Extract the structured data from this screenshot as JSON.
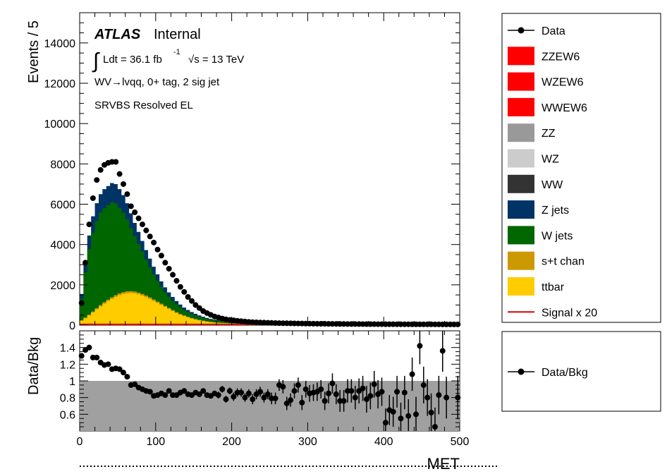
{
  "chart_data": [
    {
      "type": "stacked-histogram",
      "panel": "main",
      "ylabel": "Events / 5",
      "xlim": [
        0,
        500
      ],
      "ylim": [
        0,
        15500
      ],
      "y_ticks": [
        0,
        2000,
        4000,
        6000,
        8000,
        10000,
        12000,
        14000
      ],
      "y_tick_labels": [
        "0",
        "2000",
        "4000",
        "6000",
        "8000",
        "10000",
        "12000",
        "14000"
      ],
      "annotations": {
        "atlas": "ATLAS",
        "internal": "Internal",
        "integral": "∫",
        "lumi": "Ldt = 36.1 fb",
        "lumi_exp": "-1",
        "energy": "√s = 13 TeV",
        "channel": "WV→lvqq, 0+ tag, 2 sig jet",
        "region": "SRVBS Resolved EL"
      },
      "bin_width": 5,
      "stack_order_bottom_to_top": [
        "ttbar",
        "s+t chan",
        "W jets",
        "Z jets",
        "WW",
        "WZ",
        "ZZ",
        "WWEW6",
        "WZEW6",
        "ZZEW6"
      ],
      "total_bkg_x": [
        0,
        5,
        10,
        15,
        20,
        25,
        30,
        35,
        40,
        45,
        50,
        55,
        60,
        70,
        80,
        90,
        100,
        110,
        120,
        130,
        140,
        150,
        160,
        170,
        180,
        190,
        200,
        225,
        250,
        300,
        350,
        400,
        450,
        500
      ],
      "total_bkg_y": [
        800,
        2300,
        3900,
        5000,
        5800,
        6300,
        6700,
        6800,
        7000,
        7100,
        6900,
        6600,
        6300,
        5300,
        4400,
        3500,
        2700,
        2000,
        1500,
        1100,
        800,
        600,
        450,
        330,
        260,
        210,
        170,
        120,
        90,
        70,
        60,
        50,
        45,
        40
      ],
      "components": [
        {
          "name": "ttbar",
          "x": [
            0,
            10,
            20,
            30,
            40,
            50,
            60,
            70,
            80,
            90,
            100,
            110,
            120,
            130,
            140,
            150,
            160,
            170,
            180,
            200,
            225,
            250,
            300,
            350,
            400,
            450,
            500
          ],
          "y": [
            150,
            400,
            700,
            1000,
            1250,
            1450,
            1580,
            1600,
            1500,
            1350,
            1150,
            950,
            750,
            550,
            420,
            300,
            220,
            160,
            120,
            80,
            55,
            40,
            30,
            25,
            20,
            18,
            15
          ]
        },
        {
          "name": "s+t chan",
          "x": [
            0,
            10,
            20,
            30,
            40,
            50,
            60,
            70,
            80,
            90,
            100,
            110,
            120,
            130,
            140,
            150,
            160,
            170,
            180,
            200,
            225,
            250,
            300,
            350,
            400,
            450,
            500
          ],
          "y": [
            180,
            440,
            760,
            1070,
            1330,
            1540,
            1670,
            1690,
            1590,
            1430,
            1220,
            1010,
            800,
            590,
            450,
            320,
            240,
            170,
            130,
            90,
            60,
            45,
            34,
            28,
            23,
            20,
            17
          ]
        },
        {
          "name": "W jets",
          "x": [
            0,
            5,
            10,
            15,
            20,
            25,
            30,
            35,
            40,
            45,
            50,
            55,
            60,
            70,
            80,
            90,
            100,
            110,
            120,
            130,
            140,
            150,
            160,
            170,
            180,
            190,
            200,
            225,
            250,
            300,
            350,
            400,
            450,
            500
          ],
          "y": [
            650,
            1950,
            3300,
            4250,
            4900,
            5400,
            5750,
            5850,
            6050,
            6150,
            5950,
            5700,
            5450,
            4600,
            3850,
            3050,
            2350,
            1750,
            1300,
            950,
            700,
            520,
            390,
            290,
            225,
            180,
            150,
            105,
            80,
            62,
            53,
            45,
            40,
            35
          ]
        }
      ],
      "signal_line_y": 40,
      "data_x": [
        2.5,
        7.5,
        12.5,
        17.5,
        22.5,
        27.5,
        32.5,
        37.5,
        42.5,
        47.5,
        52.5,
        57.5,
        62.5,
        67.5,
        72.5,
        77.5,
        82.5,
        87.5,
        92.5,
        97.5,
        102.5,
        107.5,
        112.5,
        117.5,
        122.5,
        127.5,
        132.5,
        137.5,
        142.5,
        147.5,
        152.5,
        157.5,
        162.5,
        167.5,
        172.5,
        177.5,
        182.5,
        187.5,
        192.5,
        197.5,
        202.5,
        207.5,
        212.5,
        217.5,
        222.5,
        227.5,
        232.5,
        237.5,
        242.5,
        247.5,
        252.5,
        257.5,
        262.5,
        267.5,
        272.5,
        277.5,
        282.5,
        287.5,
        292.5,
        297.5,
        302.5,
        307.5,
        312.5,
        317.5,
        322.5,
        327.5,
        332.5,
        337.5,
        342.5,
        347.5,
        352.5,
        357.5,
        362.5,
        367.5,
        372.5,
        377.5,
        382.5,
        387.5,
        392.5,
        397.5,
        402.5,
        407.5,
        412.5,
        417.5,
        422.5,
        427.5,
        432.5,
        437.5,
        442.5,
        447.5,
        452.5,
        457.5,
        462.5,
        467.5,
        472.5,
        477.5,
        482.5,
        487.5,
        492.5,
        497.5
      ],
      "data_y": [
        1100,
        3100,
        5000,
        6300,
        7200,
        7700,
        7950,
        8050,
        8100,
        8100,
        7500,
        7000,
        6500,
        5900,
        5600,
        5300,
        5000,
        4700,
        4400,
        4100,
        3750,
        3450,
        3100,
        2800,
        2500,
        2200,
        1900,
        1650,
        1400,
        1200,
        1000,
        850,
        700,
        600,
        510,
        430,
        380,
        330,
        290,
        260,
        240,
        215,
        195,
        178,
        162,
        150,
        140,
        132,
        125,
        118,
        112,
        107,
        102,
        98,
        94,
        90,
        87,
        84,
        81,
        79,
        76,
        74,
        72,
        70,
        68,
        66,
        64,
        62,
        61,
        60,
        58,
        57,
        56,
        55,
        54,
        53,
        52,
        51,
        50,
        49,
        48,
        48,
        47,
        46,
        46,
        45,
        45,
        44,
        44,
        43,
        43,
        42,
        42,
        41,
        41,
        40,
        40,
        40,
        39,
        39
      ]
    },
    {
      "type": "ratio",
      "panel": "ratio",
      "xlabel": "MET",
      "ylabel": "Data/Bkg",
      "xlim": [
        0,
        500
      ],
      "ylim": [
        0.4,
        1.6
      ],
      "x_ticks": [
        0,
        100,
        200,
        300,
        400,
        500
      ],
      "x_tick_labels": [
        "0",
        "100",
        "200",
        "300",
        "400",
        "500"
      ],
      "y_ticks": [
        0.6,
        0.8,
        1,
        1.2,
        1.4
      ],
      "y_tick_labels": [
        "0.6",
        "0.8",
        "1",
        "1.2",
        "1.4"
      ],
      "band_range": [
        0.4,
        1.0
      ],
      "ratio_x": [
        2.5,
        7.5,
        12.5,
        17.5,
        22.5,
        27.5,
        32.5,
        37.5,
        42.5,
        47.5,
        52.5,
        57.5,
        62.5,
        67.5,
        72.5,
        77.5,
        82.5,
        87.5,
        92.5,
        97.5,
        102.5,
        107.5,
        112.5,
        117.5,
        122.5,
        127.5,
        132.5,
        137.5,
        142.5,
        147.5,
        152.5,
        157.5,
        162.5,
        167.5,
        172.5,
        177.5,
        182.5,
        187.5,
        192.5,
        197.5,
        202.5,
        207.5,
        212.5,
        217.5,
        222.5,
        227.5,
        232.5,
        237.5,
        242.5,
        247.5,
        252.5,
        257.5,
        262.5,
        267.5,
        272.5,
        277.5,
        282.5,
        287.5,
        292.5,
        297.5,
        302.5,
        307.5,
        312.5,
        317.5,
        322.5,
        327.5,
        332.5,
        337.5,
        342.5,
        347.5,
        352.5,
        357.5,
        362.5,
        367.5,
        372.5,
        377.5,
        382.5,
        387.5,
        392.5,
        397.5,
        402.5,
        407.5,
        412.5,
        417.5,
        422.5,
        427.5,
        432.5,
        437.5,
        442.5,
        447.5,
        452.5,
        457.5,
        462.5,
        467.5,
        472.5,
        477.5,
        482.5,
        487.5,
        492.5,
        497.5
      ],
      "ratio_y": [
        1.3,
        1.37,
        1.4,
        1.28,
        1.28,
        1.22,
        1.19,
        1.2,
        1.14,
        1.15,
        1.14,
        1.1,
        1.05,
        0.95,
        0.96,
        0.92,
        0.9,
        0.88,
        0.87,
        0.82,
        0.83,
        0.85,
        0.83,
        0.88,
        0.83,
        0.83,
        0.86,
        0.88,
        0.84,
        0.83,
        0.86,
        0.84,
        0.88,
        0.83,
        0.82,
        0.85,
        0.83,
        0.9,
        0.78,
        0.88,
        0.81,
        0.86,
        0.86,
        0.8,
        0.85,
        0.78,
        0.84,
        0.87,
        0.8,
        0.84,
        0.79,
        0.79,
        0.95,
        0.93,
        0.73,
        0.77,
        0.88,
        0.95,
        0.74,
        0.9,
        0.85,
        0.86,
        0.87,
        0.9,
        0.76,
        0.85,
        0.97,
        0.84,
        0.76,
        0.76,
        0.88,
        0.88,
        0.8,
        0.88,
        0.91,
        0.78,
        0.82,
        0.96,
        0.84,
        0.87,
        0.5,
        0.65,
        0.63,
        0.87,
        0.55,
        0.86,
        0.58,
        1.08,
        0.6,
        1.42,
        0.95,
        0.8,
        0.62,
        0.45,
        0.83,
        1.36,
        0.8,
        null,
        null,
        0.8
      ],
      "ratio_err": [
        0.03,
        0.02,
        0.02,
        0.02,
        0.02,
        0.02,
        0.02,
        0.02,
        0.02,
        0.02,
        0.02,
        0.02,
        0.02,
        0.02,
        0.02,
        0.02,
        0.02,
        0.02,
        0.02,
        0.02,
        0.02,
        0.02,
        0.02,
        0.02,
        0.02,
        0.02,
        0.02,
        0.02,
        0.02,
        0.02,
        0.02,
        0.03,
        0.03,
        0.03,
        0.03,
        0.03,
        0.04,
        0.04,
        0.04,
        0.04,
        0.05,
        0.05,
        0.05,
        0.05,
        0.05,
        0.06,
        0.06,
        0.06,
        0.06,
        0.06,
        0.07,
        0.07,
        0.07,
        0.08,
        0.08,
        0.08,
        0.09,
        0.09,
        0.09,
        0.1,
        0.1,
        0.1,
        0.11,
        0.11,
        0.11,
        0.12,
        0.12,
        0.12,
        0.13,
        0.13,
        0.14,
        0.14,
        0.14,
        0.15,
        0.15,
        0.16,
        0.16,
        0.16,
        0.17,
        0.17,
        0.17,
        0.18,
        0.18,
        0.19,
        0.19,
        0.2,
        0.2,
        0.2,
        0.21,
        0.22,
        0.22,
        0.22,
        0.23,
        0.23,
        0.23,
        0.25,
        0.25,
        0.25,
        0.26,
        0.26
      ]
    }
  ],
  "legend_main": [
    {
      "label": "Data",
      "style": "marker",
      "color": "#000000"
    },
    {
      "label": "ZZEW6",
      "style": "box",
      "color": "#ff0000"
    },
    {
      "label": "WZEW6",
      "style": "box",
      "color": "#ff0000"
    },
    {
      "label": "WWEW6",
      "style": "box",
      "color": "#ff0000"
    },
    {
      "label": "ZZ",
      "style": "box",
      "color": "#999999"
    },
    {
      "label": "WZ",
      "style": "box",
      "color": "#cccccc"
    },
    {
      "label": "WW",
      "style": "box",
      "color": "#333333"
    },
    {
      "label": "Z jets",
      "style": "box",
      "color": "#003366"
    },
    {
      "label": "W jets",
      "style": "box",
      "color": "#006600"
    },
    {
      "label": "s+t chan",
      "style": "box",
      "color": "#cc9900"
    },
    {
      "label": "ttbar",
      "style": "box",
      "color": "#ffcc00"
    },
    {
      "label": "Signal x 20",
      "style": "line",
      "color": "#dd0000"
    }
  ],
  "legend_ratio": [
    {
      "label": "Data/Bkg",
      "style": "marker",
      "color": "#000000"
    }
  ],
  "colors": {
    "ttbar": "#ffcc00",
    "st": "#cc9900",
    "wjets": "#006600",
    "zjets": "#003366",
    "signal": "#dd0000",
    "band": "#a0a0a0"
  }
}
